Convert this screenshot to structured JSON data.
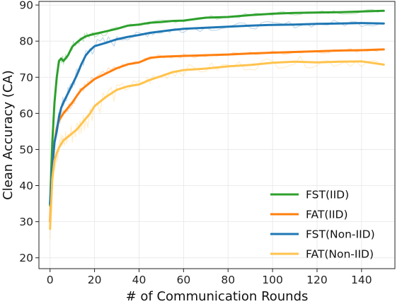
{
  "chart_data": {
    "type": "line",
    "title": "",
    "xlabel": "# of Communication Rounds",
    "ylabel": "Clean Accuracy (CA)",
    "xlim": [
      -5,
      155
    ],
    "ylim": [
      17,
      91
    ],
    "xticks": [
      0,
      20,
      40,
      60,
      80,
      100,
      120,
      140
    ],
    "yticks": [
      20,
      30,
      40,
      50,
      60,
      70,
      80,
      90
    ],
    "grid": true,
    "legend_position": "lower-right",
    "x": [
      0,
      1,
      2,
      3,
      4,
      5,
      6,
      8,
      10,
      12,
      14,
      16,
      18,
      20,
      25,
      30,
      35,
      40,
      45,
      50,
      55,
      60,
      70,
      80,
      90,
      100,
      110,
      120,
      130,
      140,
      150
    ],
    "series": [
      {
        "name": "FST(IID)",
        "color": "#2ca02c",
        "values": [
          34.5,
          52,
          63,
          70,
          74.5,
          75.2,
          74.5,
          76,
          78.5,
          79.6,
          80.6,
          81.3,
          81.7,
          82,
          82.7,
          83.4,
          84.3,
          84.6,
          85.1,
          85.3,
          85.6,
          85.7,
          86.5,
          86.7,
          87.2,
          87.6,
          87.8,
          87.9,
          88,
          88.2,
          88.4
        ]
      },
      {
        "name": "FAT(IID)",
        "color": "#ff7f0e",
        "values": [
          30,
          45,
          52,
          56,
          58,
          59,
          60,
          61.5,
          63,
          64.8,
          66.5,
          67.5,
          68.5,
          69.5,
          71,
          72.5,
          73.6,
          74.1,
          75.4,
          75.7,
          75.8,
          75.9,
          76.1,
          76.3,
          76.6,
          76.8,
          77,
          77.2,
          77.4,
          77.5,
          77.7
        ]
      },
      {
        "name": "FST(Non-IID)",
        "color": "#1f77b4",
        "values": [
          35,
          45,
          52,
          55,
          59,
          61.5,
          63,
          65.5,
          68,
          70.5,
          73.5,
          76,
          77.5,
          78.6,
          79.5,
          80.5,
          81.2,
          81.7,
          82.3,
          82.7,
          83.1,
          83.4,
          83.7,
          84,
          84.3,
          84.5,
          84.6,
          84.8,
          84.9,
          85,
          84.9
        ]
      },
      {
        "name": "FAT(Non-IID)",
        "color": "#ffc34d",
        "values": [
          28,
          42,
          47,
          49,
          50.5,
          51.5,
          52.5,
          53.5,
          54.5,
          55.5,
          57,
          58.5,
          60,
          62,
          64.5,
          66.5,
          67.5,
          68,
          69.3,
          70.3,
          71.4,
          72,
          72.4,
          73,
          73.4,
          74,
          74.3,
          74.1,
          74.3,
          74.4,
          73.5
        ]
      }
    ]
  }
}
